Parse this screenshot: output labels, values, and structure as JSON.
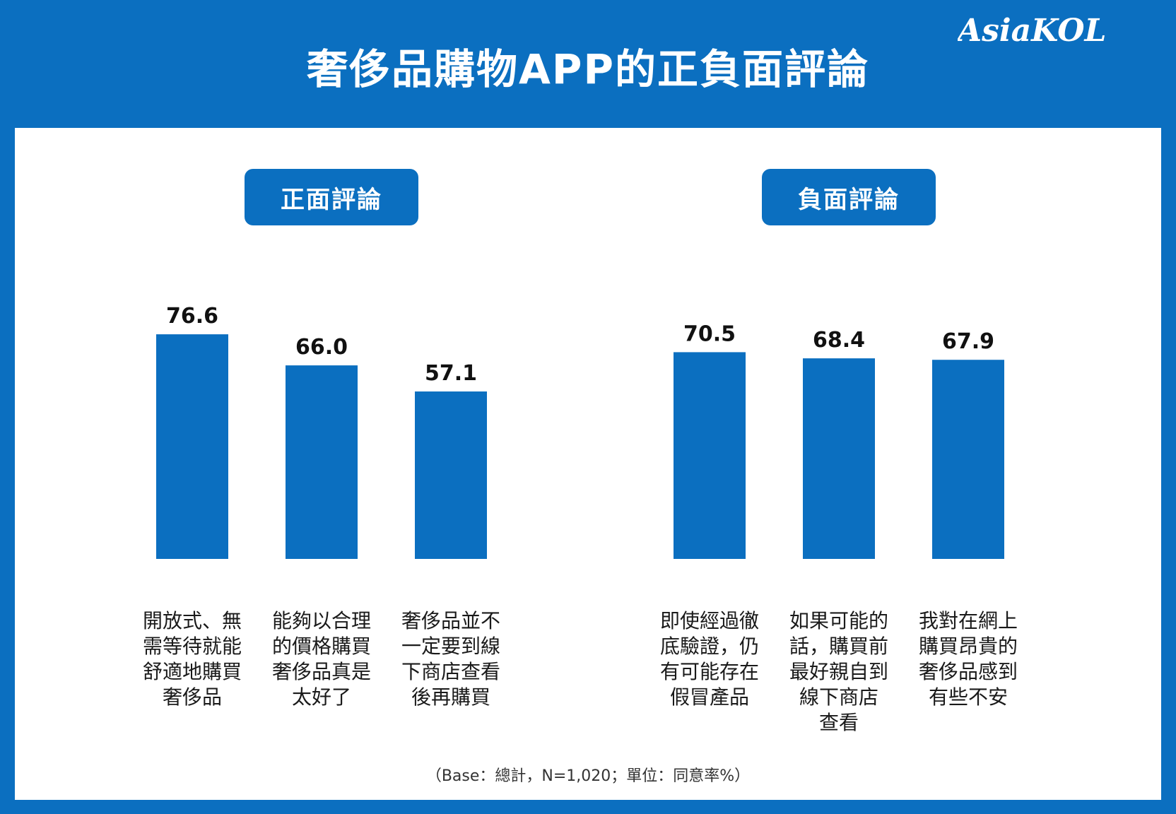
{
  "header": {
    "title": "奢侈品購物APP的正負面評論",
    "logo_text": "AsiaKOL"
  },
  "colors": {
    "brand_blue": "#0b6fc0",
    "bar": "#0b6fc0",
    "panel": "#ffffff"
  },
  "chart_data": [
    {
      "type": "bar",
      "title": "正面評論",
      "categories": [
        "開放式、無\n需等待就能\n舒適地購買\n奢侈品",
        "能夠以合理\n的價格購買\n奢侈品真是\n太好了",
        "奢侈品並不\n一定要到線\n下商店查看\n後再購買"
      ],
      "values": [
        76.6,
        66.0,
        57.1
      ],
      "value_labels": [
        "76.6",
        "66.0",
        "57.1"
      ],
      "ylim": [
        0,
        100
      ],
      "grid": false
    },
    {
      "type": "bar",
      "title": "負面評論",
      "categories": [
        "即使經過徹\n底驗證，仍\n有可能存在\n假冒產品",
        "如果可能的\n話，購買前\n最好親自到\n線下商店\n查看",
        "我對在網上\n購買昂貴的\n奢侈品感到\n有些不安"
      ],
      "values": [
        70.5,
        68.4,
        67.9
      ],
      "value_labels": [
        "70.5",
        "68.4",
        "67.9"
      ],
      "ylim": [
        0,
        100
      ],
      "grid": false
    }
  ],
  "footnote": "（Base：總計，N=1,020；單位：同意率%）"
}
